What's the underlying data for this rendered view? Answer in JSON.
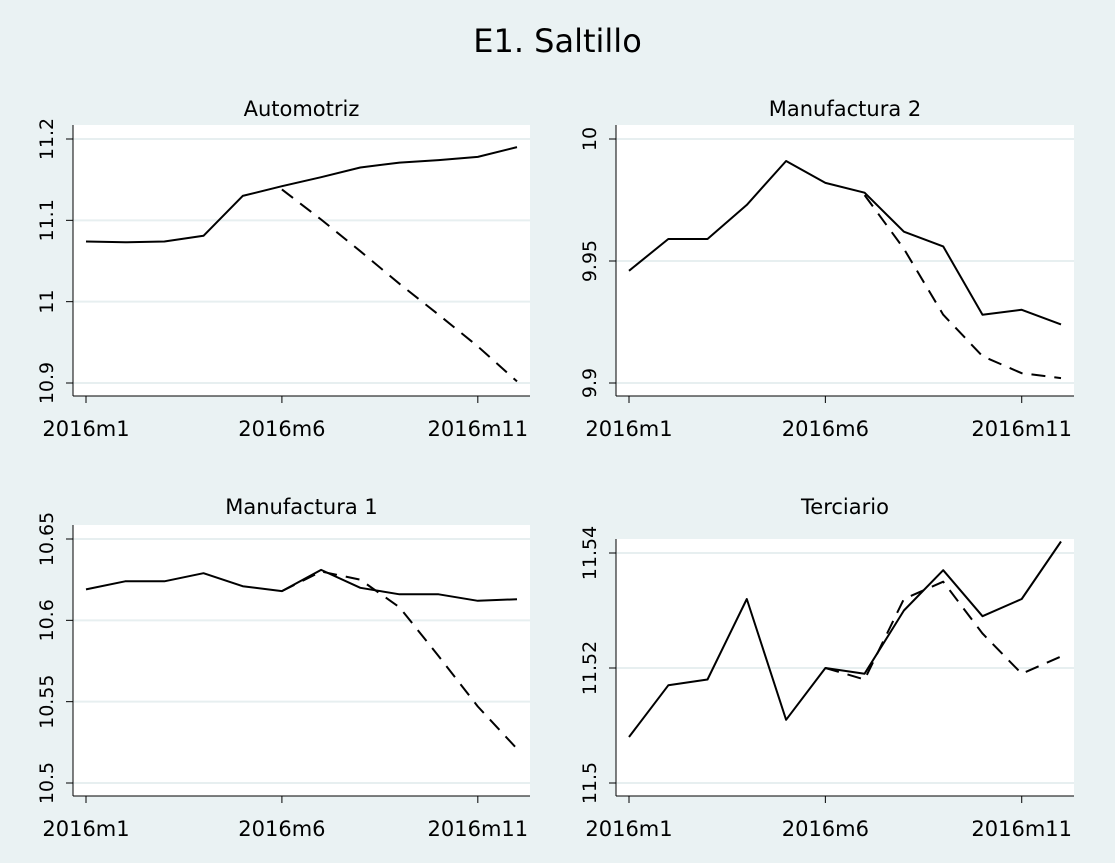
{
  "figure": {
    "title": "E1. Saltillo",
    "background": "#eaf2f3",
    "plot_background": "#ffffff",
    "grid_color": "#e7eff0",
    "line_color": "#000000"
  },
  "chart_data": [
    {
      "type": "line",
      "title": "Automotriz",
      "x": [
        "2016m1",
        "2016m2",
        "2016m3",
        "2016m4",
        "2016m5",
        "2016m6",
        "2016m7",
        "2016m8",
        "2016m9",
        "2016m10",
        "2016m11",
        "2016m12"
      ],
      "x_ticks": [
        "2016m1",
        "2016m6",
        "2016m11"
      ],
      "ylim": [
        10.9,
        11.2
      ],
      "y_ticks": [
        "10.9",
        "11",
        "11.1",
        "11.2"
      ],
      "grid": true,
      "series": [
        {
          "style": "solid",
          "values": [
            11.074,
            11.073,
            11.074,
            11.081,
            11.13,
            11.142,
            11.153,
            11.165,
            11.171,
            11.174,
            11.178,
            11.19
          ]
        },
        {
          "style": "dashed",
          "values": [
            null,
            null,
            null,
            null,
            null,
            11.138,
            11.101,
            11.062,
            11.022,
            10.984,
            10.945,
            10.902
          ]
        }
      ]
    },
    {
      "type": "line",
      "title": "Manufactura 2",
      "x": [
        "2016m1",
        "2016m2",
        "2016m3",
        "2016m4",
        "2016m5",
        "2016m6",
        "2016m7",
        "2016m8",
        "2016m9",
        "2016m10",
        "2016m11",
        "2016m12"
      ],
      "x_ticks": [
        "2016m1",
        "2016m6",
        "2016m11"
      ],
      "ylim": [
        9.9,
        10
      ],
      "y_ticks": [
        "9.9",
        "9.95",
        "10"
      ],
      "grid": true,
      "series": [
        {
          "style": "solid",
          "values": [
            9.946,
            9.959,
            9.959,
            9.973,
            9.991,
            9.982,
            9.978,
            9.962,
            9.956,
            9.928,
            9.93,
            9.924
          ]
        },
        {
          "style": "dashed",
          "values": [
            null,
            null,
            null,
            null,
            null,
            null,
            9.977,
            9.955,
            9.928,
            9.911,
            9.904,
            9.902
          ]
        }
      ]
    },
    {
      "type": "line",
      "title": "Manufactura 1",
      "x": [
        "2016m1",
        "2016m2",
        "2016m3",
        "2016m4",
        "2016m5",
        "2016m6",
        "2016m7",
        "2016m8",
        "2016m9",
        "2016m10",
        "2016m11",
        "2016m12"
      ],
      "x_ticks": [
        "2016m1",
        "2016m6",
        "2016m11"
      ],
      "ylim": [
        10.5,
        10.65
      ],
      "y_ticks": [
        "10.5",
        "10.55",
        "10.6",
        "10.65"
      ],
      "grid": true,
      "series": [
        {
          "style": "solid",
          "values": [
            10.619,
            10.624,
            10.624,
            10.629,
            10.621,
            10.618,
            10.631,
            10.62,
            10.616,
            10.616,
            10.612,
            10.613
          ]
        },
        {
          "style": "dashed",
          "values": [
            null,
            null,
            null,
            null,
            null,
            10.618,
            10.63,
            10.625,
            10.608,
            10.578,
            10.547,
            10.521
          ]
        }
      ]
    },
    {
      "type": "line",
      "title": "Terciario",
      "x": [
        "2016m1",
        "2016m2",
        "2016m3",
        "2016m4",
        "2016m5",
        "2016m6",
        "2016m7",
        "2016m8",
        "2016m9",
        "2016m10",
        "2016m11",
        "2016m12"
      ],
      "x_ticks": [
        "2016m1",
        "2016m6",
        "2016m11"
      ],
      "ylim": [
        11.5,
        11.54
      ],
      "y_ticks": [
        "11.5",
        "11.52",
        "11.54"
      ],
      "grid": true,
      "series": [
        {
          "style": "solid",
          "values": [
            11.508,
            11.517,
            11.518,
            11.532,
            11.511,
            11.52,
            11.519,
            11.53,
            11.537,
            11.529,
            11.532,
            11.542
          ]
        },
        {
          "style": "dashed",
          "values": [
            null,
            null,
            null,
            null,
            null,
            11.52,
            11.518,
            11.532,
            11.535,
            11.526,
            11.519,
            11.522
          ]
        }
      ]
    }
  ]
}
